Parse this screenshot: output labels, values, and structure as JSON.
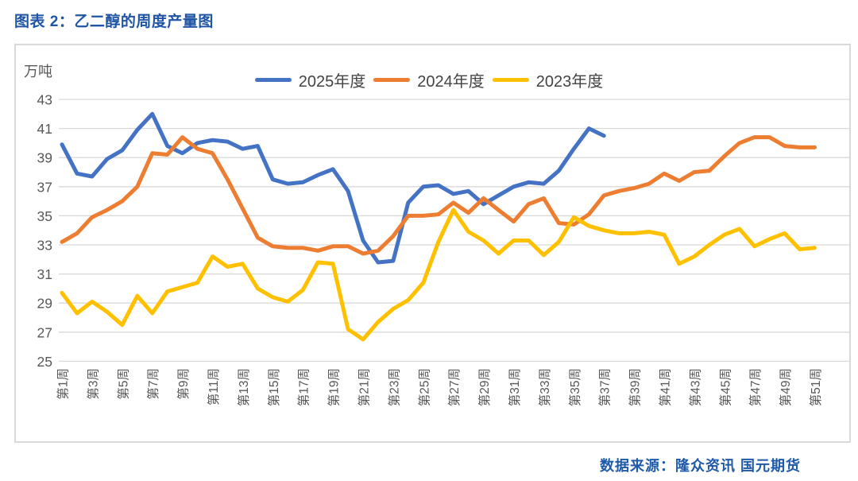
{
  "page": {
    "title": "图表 2：乙二醇的周度产量图",
    "source": "数据来源：隆众资讯 国元期货"
  },
  "chart_data": {
    "type": "line",
    "title": "乙二醇的周度产量图",
    "unit_label": "万吨",
    "ylabel": "万吨",
    "xlabel": "",
    "ylim": [
      25,
      43
    ],
    "y_ticks": [
      43,
      41,
      39,
      37,
      35,
      33,
      31,
      29,
      27,
      25
    ],
    "grid": true,
    "legend_position": "top-center",
    "x_tick_labels": [
      "第1周",
      "第3周",
      "第5周",
      "第7周",
      "第9周",
      "第11周",
      "第13周",
      "第15周",
      "第17周",
      "第19周",
      "第21周",
      "第23周",
      "第25周",
      "第27周",
      "第29周",
      "第31周",
      "第33周",
      "第35周",
      "第37周",
      "第39周",
      "第41周",
      "第43周",
      "第45周",
      "第47周",
      "第49周",
      "第51周"
    ],
    "x_unit": "周",
    "series": [
      {
        "name": "2025年度",
        "color": "#4472C4",
        "start_week": 1,
        "values": [
          39.9,
          37.9,
          37.7,
          38.9,
          39.5,
          40.9,
          42.0,
          39.8,
          39.3,
          40.0,
          40.2,
          40.1,
          39.6,
          39.8,
          37.5,
          37.2,
          37.3,
          37.8,
          38.2,
          36.7,
          33.3,
          31.8,
          31.9,
          35.9,
          37.0,
          37.1,
          36.5,
          36.7,
          35.8,
          36.4,
          37.0,
          37.3,
          37.2,
          38.1,
          39.6,
          41.0,
          40.5
        ]
      },
      {
        "name": "2024年度",
        "color": "#ED7D31",
        "start_week": 1,
        "values": [
          33.2,
          33.8,
          34.9,
          35.4,
          36.0,
          37.0,
          39.3,
          39.2,
          40.4,
          39.6,
          39.3,
          37.5,
          35.5,
          33.5,
          32.9,
          32.8,
          32.8,
          32.6,
          32.9,
          32.9,
          32.4,
          32.6,
          33.6,
          35.0,
          35.0,
          35.1,
          35.9,
          35.2,
          36.2,
          35.4,
          34.6,
          35.8,
          36.2,
          34.5,
          34.4,
          35.1,
          36.4,
          36.7,
          36.9,
          37.2,
          37.9,
          37.4,
          38.0,
          38.1,
          39.1,
          40.0,
          40.4,
          40.4,
          39.8,
          39.7,
          39.7
        ]
      },
      {
        "name": "2023年度",
        "color": "#FFC000",
        "start_week": 1,
        "values": [
          29.7,
          28.3,
          29.1,
          28.4,
          27.5,
          29.5,
          28.3,
          29.8,
          30.1,
          30.4,
          32.2,
          31.5,
          31.7,
          30.0,
          29.4,
          29.1,
          29.9,
          31.8,
          31.7,
          27.2,
          26.5,
          27.7,
          28.6,
          29.2,
          30.4,
          33.2,
          35.4,
          33.9,
          33.3,
          32.4,
          33.3,
          33.3,
          32.3,
          33.2,
          34.9,
          34.3,
          34.0,
          33.8,
          33.8,
          33.9,
          33.7,
          31.7,
          32.2,
          33.0,
          33.7,
          34.1,
          32.9,
          33.4,
          33.8,
          32.7,
          32.8
        ]
      }
    ],
    "colors": {
      "grid": "#D9D9D9",
      "axis_text": "#595959",
      "title_text": "#1F55A4",
      "source_text": "#1F5AA8"
    }
  }
}
